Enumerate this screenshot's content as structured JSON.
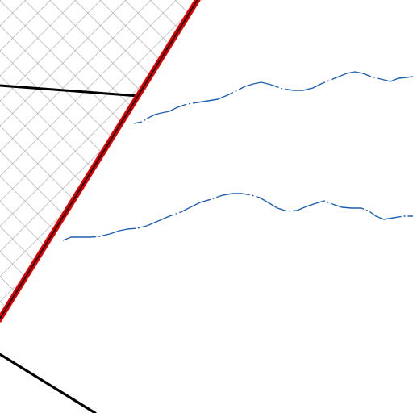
{
  "map": {
    "style": "topographic-tile",
    "colors": {
      "background": "#ffffff",
      "hatch_grid": "#b4b4b4",
      "boundary": "#e00000",
      "road": "#000000",
      "stream": "#1f5fb0"
    },
    "features": [
      {
        "kind": "restricted-area",
        "fill": "crosshatch"
      },
      {
        "kind": "area-boundary",
        "line": "red"
      },
      {
        "kind": "road",
        "count": 2
      },
      {
        "kind": "intermittent-stream",
        "count": 2,
        "line": "dash-dot"
      }
    ]
  }
}
